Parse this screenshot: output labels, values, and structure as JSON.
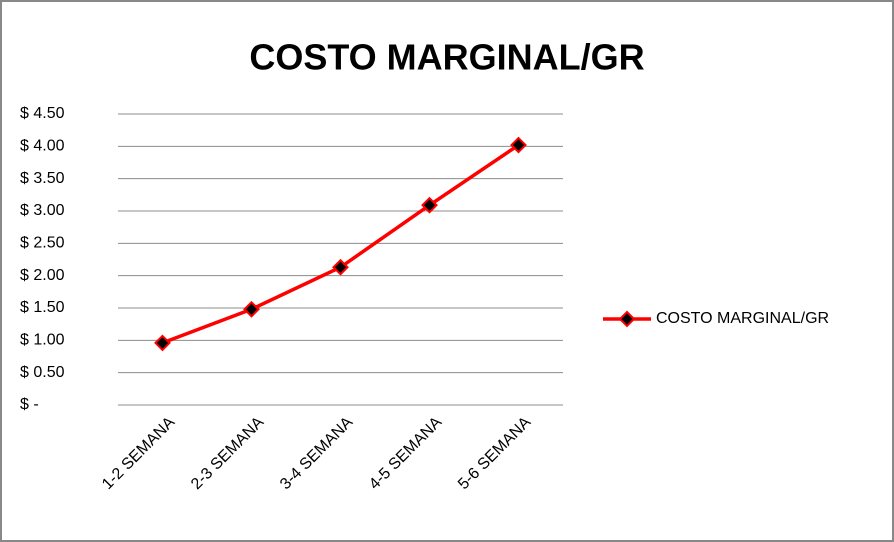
{
  "chart_data": {
    "type": "line",
    "title": "COSTO MARGINAL/GR",
    "categories": [
      "1-2 SEMANA",
      "2-3 SEMANA",
      "3-4 SEMANA",
      "4-5 SEMANA",
      "5-6 SEMANA"
    ],
    "series": [
      {
        "name": "COSTO MARGINAL/GR",
        "color": "#ff0000",
        "values": [
          0.96,
          1.48,
          2.13,
          3.09,
          4.02
        ]
      }
    ],
    "ylim": [
      0,
      4.5
    ],
    "yticks": [
      {
        "value": 0,
        "label": "$ -"
      },
      {
        "value": 0.5,
        "label": "$ 0.50"
      },
      {
        "value": 1,
        "label": "$ 1.00"
      },
      {
        "value": 1.5,
        "label": "$ 1.50"
      },
      {
        "value": 2,
        "label": "$ 2.00"
      },
      {
        "value": 2.5,
        "label": "$ 2.50"
      },
      {
        "value": 3,
        "label": "$ 3.00"
      },
      {
        "value": 3.5,
        "label": "$ 3.50"
      },
      {
        "value": 4,
        "label": "$ 4.00"
      },
      {
        "value": 4.5,
        "label": "$ 4.50"
      }
    ],
    "grid": true,
    "legend": "right"
  }
}
